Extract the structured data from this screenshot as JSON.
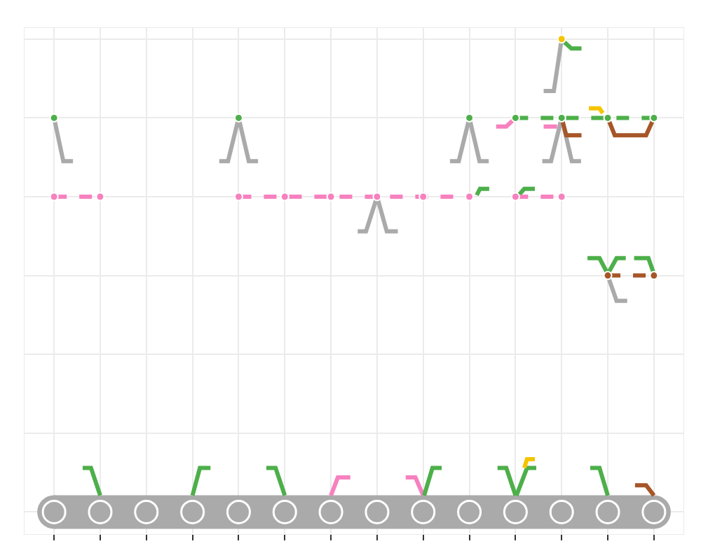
{
  "chart_data": {
    "type": "scatter",
    "grid": true,
    "tick_labels": false,
    "xlim": [
      -0.64,
      13.64
    ],
    "ylim": [
      -0.28,
      6.14
    ],
    "xticks": [
      0,
      1,
      2,
      3,
      4,
      5,
      6,
      7,
      8,
      9,
      10,
      11,
      12,
      13
    ],
    "yticks": [
      0,
      1,
      2,
      3,
      4,
      5,
      6
    ],
    "series": [
      {
        "color": "#aaaaaa",
        "line_style": "thick",
        "marker": "round",
        "x": [
          0,
          13
        ],
        "y": [
          0,
          0
        ]
      },
      {
        "color": "#aaaaaa",
        "line_style": "none",
        "marker": "node",
        "x": [
          0,
          1,
          2,
          3,
          4,
          5,
          6,
          7,
          8,
          9,
          10,
          11,
          12,
          13
        ],
        "y": [
          0,
          0,
          0,
          0,
          0,
          0,
          0,
          0,
          0,
          0,
          0,
          0,
          0,
          0
        ]
      },
      {
        "color": "#4daf4a",
        "line_style": "solid",
        "marker": "none",
        "x": [
          1,
          0.8,
          0.62
        ],
        "y": [
          0.21,
          0.56,
          0.56
        ]
      },
      {
        "color": "#4daf4a",
        "line_style": "solid",
        "marker": "none",
        "x": [
          3,
          3.16,
          3.39
        ],
        "y": [
          0.21,
          0.56,
          0.56
        ]
      },
      {
        "color": "#4daf4a",
        "line_style": "solid",
        "marker": "none",
        "x": [
          5,
          4.8,
          4.6
        ],
        "y": [
          0.21,
          0.56,
          0.56
        ]
      },
      {
        "color": "#f781bf",
        "line_style": "solid",
        "marker": "none",
        "x": [
          6,
          6.15,
          6.42
        ],
        "y": [
          0.21,
          0.44,
          0.44
        ]
      },
      {
        "color": "#f781bf",
        "line_style": "solid",
        "marker": "none",
        "x": [
          8,
          7.83,
          7.62
        ],
        "y": [
          0.21,
          0.44,
          0.44
        ]
      },
      {
        "color": "#4daf4a",
        "line_style": "solid",
        "marker": "none",
        "x": [
          8.02,
          8.2,
          8.4
        ],
        "y": [
          0.21,
          0.56,
          0.56
        ]
      },
      {
        "color": "#4daf4a",
        "line_style": "solid",
        "marker": "none",
        "x": [
          10,
          9.8,
          9.61
        ],
        "y": [
          0.21,
          0.56,
          0.56
        ]
      },
      {
        "color": "#4daf4a",
        "line_style": "solid",
        "marker": "none",
        "x": [
          10.02,
          10.25,
          10.45
        ],
        "y": [
          0.21,
          0.56,
          0.56
        ]
      },
      {
        "color": "#f5c400",
        "line_style": "solid",
        "marker": "none",
        "x": [
          10.19,
          10.25,
          10.42
        ],
        "y": [
          0.56,
          0.67,
          0.67
        ]
      },
      {
        "color": "#4daf4a",
        "line_style": "solid",
        "marker": "none",
        "x": [
          12,
          11.82,
          11.62
        ],
        "y": [
          0.21,
          0.56,
          0.56
        ]
      },
      {
        "color": "#a65628",
        "line_style": "solid",
        "marker": "none",
        "x": [
          13,
          12.83,
          12.59
        ],
        "y": [
          0.21,
          0.34,
          0.34
        ]
      },
      {
        "color": "#aaaaaa",
        "line_style": "solid",
        "marker": "none",
        "x": [
          11,
          10.83,
          10.61
        ],
        "y": [
          6,
          5.34,
          5.34
        ]
      },
      {
        "color": "#4daf4a",
        "line_style": "solid",
        "marker": "none",
        "x": [
          11.06,
          11.21,
          11.43
        ],
        "y": [
          5.96,
          5.88,
          5.88
        ]
      },
      {
        "color": "#aaaaaa",
        "line_style": "solid",
        "marker": "none",
        "x": [
          0,
          0.2,
          0.41
        ],
        "y": [
          5,
          4.45,
          4.45
        ]
      },
      {
        "color": "#aaaaaa",
        "line_style": "solid",
        "marker": "none",
        "x": [
          3.58,
          3.77,
          4,
          4.22,
          4.42
        ],
        "y": [
          4.45,
          4.45,
          5,
          4.45,
          4.45
        ]
      },
      {
        "color": "#aaaaaa",
        "line_style": "solid",
        "marker": "none",
        "x": [
          8.58,
          8.77,
          9,
          9.22,
          9.42
        ],
        "y": [
          4.45,
          4.45,
          5,
          4.45,
          4.45
        ]
      },
      {
        "color": "#aaaaaa",
        "line_style": "solid",
        "marker": "none",
        "x": [
          10.58,
          10.77,
          11,
          11.22,
          11.42
        ],
        "y": [
          4.45,
          4.45,
          5,
          4.45,
          4.45
        ]
      },
      {
        "color": "#f781bf",
        "line_style": "solid",
        "marker": "none",
        "x": [
          9.58,
          9.8,
          10
        ],
        "y": [
          4.89,
          4.89,
          5
        ]
      },
      {
        "color": "#f781bf",
        "line_style": "solid",
        "marker": "none",
        "x": [
          10.61,
          10.9
        ],
        "y": [
          4.89,
          4.89
        ]
      },
      {
        "color": "#a65628",
        "line_style": "solid",
        "marker": "none",
        "x": [
          11,
          11.1,
          11.43
        ],
        "y": [
          5,
          4.78,
          4.78
        ]
      },
      {
        "color": "#a65628",
        "line_style": "solid",
        "marker": "none",
        "x": [
          12,
          12.15,
          12.83,
          13
        ],
        "y": [
          5,
          4.78,
          4.78,
          5
        ]
      },
      {
        "color": "#f5c400",
        "line_style": "solid",
        "marker": "none",
        "x": [
          11.59,
          11.82,
          11.89
        ],
        "y": [
          5.12,
          5.12,
          5.06
        ]
      },
      {
        "color": "#4daf4a",
        "line_style": "dashed",
        "marker": "none",
        "x": [
          10,
          13
        ],
        "y": [
          5,
          5
        ]
      },
      {
        "color": "#4daf4a",
        "line_style": "none",
        "marker": "dot",
        "x": [
          0,
          4,
          9,
          10,
          11,
          12,
          13
        ],
        "y": [
          5,
          5,
          5,
          5,
          5,
          5,
          5
        ]
      },
      {
        "color": "#f5c400",
        "line_style": "none",
        "marker": "dot",
        "x": [
          11
        ],
        "y": [
          6
        ]
      },
      {
        "color": "#aaaaaa",
        "line_style": "solid",
        "marker": "none",
        "x": [
          6.58,
          6.76,
          7,
          7.21,
          7.45
        ],
        "y": [
          3.56,
          3.56,
          4,
          3.56,
          3.56
        ]
      },
      {
        "color": "#4daf4a",
        "line_style": "solid",
        "marker": "none",
        "x": [
          9.16,
          9.23,
          9.43
        ],
        "y": [
          4.02,
          4.1,
          4.1
        ]
      },
      {
        "color": "#4daf4a",
        "line_style": "solid",
        "marker": "none",
        "x": [
          10.07,
          10.19,
          10.42
        ],
        "y": [
          4.02,
          4.1,
          4.1
        ]
      },
      {
        "color": "#f781bf",
        "line_style": "dashed",
        "marker": "dot",
        "x": [
          0,
          1
        ],
        "y": [
          4,
          4
        ]
      },
      {
        "color": "#f781bf",
        "line_style": "dashed",
        "marker": "dot",
        "x": [
          4,
          5,
          6,
          7,
          8,
          9
        ],
        "y": [
          4,
          4,
          4,
          4,
          4,
          4
        ]
      },
      {
        "color": "#f781bf",
        "line_style": "dashed",
        "marker": "dot",
        "x": [
          10,
          11
        ],
        "y": [
          4,
          4
        ]
      },
      {
        "color": "#aaaaaa",
        "line_style": "solid",
        "marker": "none",
        "x": [
          12,
          12.19,
          12.42
        ],
        "y": [
          3,
          2.68,
          2.68
        ]
      },
      {
        "color": "#4daf4a",
        "line_style": "solid",
        "marker": "none",
        "x": [
          11.56,
          11.82,
          12,
          12.19,
          12.39
        ],
        "y": [
          3.22,
          3.22,
          3.02,
          3.22,
          3.22
        ]
      },
      {
        "color": "#4daf4a",
        "line_style": "solid",
        "marker": "none",
        "x": [
          12.57,
          12.88,
          13
        ],
        "y": [
          3.22,
          3.22,
          3.02
        ]
      },
      {
        "color": "#a65628",
        "line_style": "dashed",
        "marker": "dot",
        "x": [
          12,
          13
        ],
        "y": [
          3,
          3
        ]
      }
    ]
  }
}
